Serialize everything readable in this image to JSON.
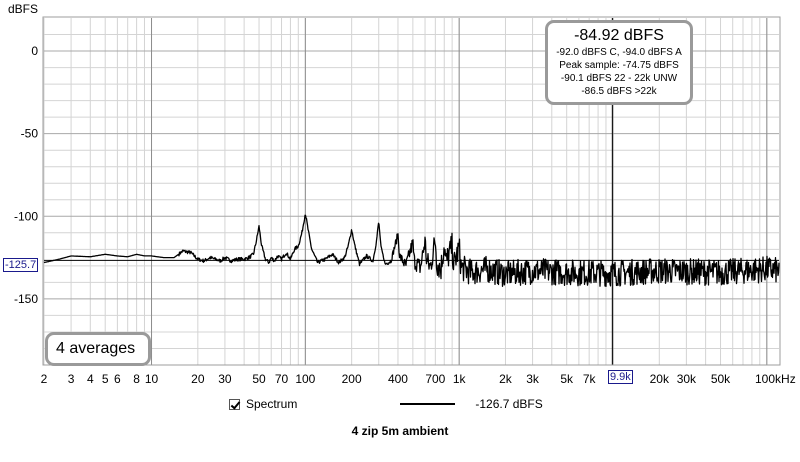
{
  "chart_data": {
    "type": "line",
    "title": "4 zip  5m ambient",
    "ylabel": "dBFS",
    "xunit_label": "100kHz",
    "xscale": "log",
    "xlim": [
      2,
      120000
    ],
    "ylim": [
      -190,
      20
    ],
    "grid": true,
    "legend_placement": "bottom",
    "x_ticks": [
      {
        "v": 2,
        "label": "2"
      },
      {
        "v": 3,
        "label": "3"
      },
      {
        "v": 4,
        "label": "4"
      },
      {
        "v": 5,
        "label": "5"
      },
      {
        "v": 6,
        "label": "6"
      },
      {
        "v": 8,
        "label": "8"
      },
      {
        "v": 10,
        "label": "10"
      },
      {
        "v": 20,
        "label": "20"
      },
      {
        "v": 30,
        "label": "30"
      },
      {
        "v": 50,
        "label": "50"
      },
      {
        "v": 70,
        "label": "70"
      },
      {
        "v": 100,
        "label": "100"
      },
      {
        "v": 200,
        "label": "200"
      },
      {
        "v": 400,
        "label": "400"
      },
      {
        "v": 700,
        "label": "700"
      },
      {
        "v": 1000,
        "label": "1k"
      },
      {
        "v": 2000,
        "label": "2k"
      },
      {
        "v": 3000,
        "label": "3k"
      },
      {
        "v": 5000,
        "label": "5k"
      },
      {
        "v": 7000,
        "label": "7k"
      },
      {
        "v": 20000,
        "label": "20k"
      },
      {
        "v": 30000,
        "label": "30k"
      },
      {
        "v": 50000,
        "label": "50k"
      }
    ],
    "y_ticks": [
      0,
      -50,
      -100,
      -150
    ],
    "major_x_lines": [
      10,
      100,
      1000,
      10000,
      100000
    ],
    "series": [
      {
        "name": "Spectrum",
        "color": "#000000",
        "points": [
          [
            2,
            -128
          ],
          [
            2.5,
            -126
          ],
          [
            3,
            -124
          ],
          [
            4,
            -124.5
          ],
          [
            5,
            -123
          ],
          [
            6,
            -124
          ],
          [
            7,
            -124.5
          ],
          [
            8,
            -123
          ],
          [
            9,
            -124
          ],
          [
            10,
            -124
          ],
          [
            12,
            -125
          ],
          [
            14,
            -125
          ],
          [
            15,
            -123
          ],
          [
            16,
            -121
          ],
          [
            18,
            -122
          ],
          [
            20,
            -126
          ],
          [
            22,
            -127
          ],
          [
            24,
            -125
          ],
          [
            26,
            -126
          ],
          [
            28,
            -127
          ],
          [
            30,
            -125
          ],
          [
            33,
            -127
          ],
          [
            36,
            -126
          ],
          [
            40,
            -126
          ],
          [
            43,
            -125
          ],
          [
            46,
            -123
          ],
          [
            48,
            -115
          ],
          [
            50,
            -106
          ],
          [
            52,
            -118
          ],
          [
            55,
            -126
          ],
          [
            58,
            -128
          ],
          [
            60,
            -125
          ],
          [
            63,
            -127
          ],
          [
            66,
            -124
          ],
          [
            70,
            -126
          ],
          [
            75,
            -122
          ],
          [
            80,
            -126
          ],
          [
            85,
            -120
          ],
          [
            90,
            -118
          ],
          [
            95,
            -110
          ],
          [
            100,
            -98
          ],
          [
            105,
            -110
          ],
          [
            110,
            -120
          ],
          [
            120,
            -128
          ],
          [
            135,
            -126
          ],
          [
            150,
            -123
          ],
          [
            165,
            -128
          ],
          [
            180,
            -125
          ],
          [
            190,
            -118
          ],
          [
            200,
            -108
          ],
          [
            210,
            -118
          ],
          [
            225,
            -129
          ],
          [
            250,
            -124
          ],
          [
            275,
            -127
          ],
          [
            290,
            -115
          ],
          [
            300,
            -103
          ],
          [
            310,
            -118
          ],
          [
            330,
            -129
          ],
          [
            360,
            -127
          ],
          [
            400,
            -111
          ],
          [
            410,
            -124
          ],
          [
            450,
            -130
          ],
          [
            500,
            -116
          ],
          [
            510,
            -127
          ],
          [
            560,
            -131
          ],
          [
            600,
            -115
          ],
          [
            615,
            -127
          ],
          [
            650,
            -131
          ],
          [
            700,
            -114
          ],
          [
            715,
            -128
          ],
          [
            760,
            -132
          ],
          [
            800,
            -117
          ],
          [
            820,
            -128
          ],
          [
            900,
            -118
          ],
          [
            920,
            -130
          ],
          [
            1000,
            -119
          ],
          [
            1030,
            -131
          ],
          [
            1200,
            -134
          ],
          [
            1500,
            -132
          ],
          [
            2000,
            -135
          ],
          [
            3000,
            -133
          ],
          [
            5000,
            -134
          ],
          [
            9900,
            -134.5
          ],
          [
            20000,
            -133
          ],
          [
            50000,
            -134
          ],
          [
            100000,
            -132
          ],
          [
            120000,
            -133
          ]
        ],
        "noise_from_hz": 300,
        "noise_amplitude_db": 8
      }
    ],
    "reference_line": {
      "value": -126.7,
      "label": "-126.7 dBFS"
    },
    "cursor": {
      "x": 9900,
      "x_label": "9.9k",
      "y_label": "-125.7"
    },
    "averages_label": "4 averages",
    "readout": {
      "main": "-84.92 dBFS",
      "lines": [
        "-92.0 dBFS C, -94.0 dBFS A",
        "Peak sample: -74.75 dBFS",
        "-90.1 dBFS 22 - 22k UNW",
        "-86.5 dBFS >22k"
      ]
    }
  }
}
